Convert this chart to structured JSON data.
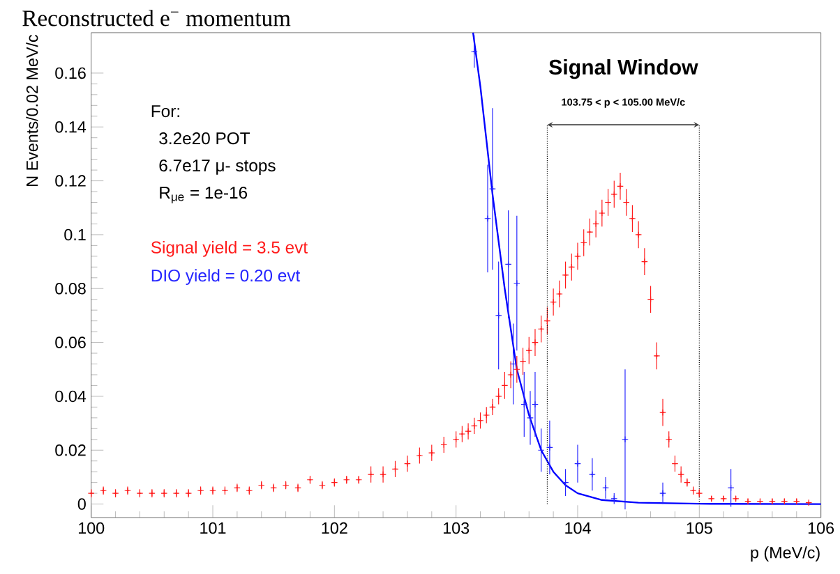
{
  "chart_data": {
    "type": "scatter",
    "title": "Reconstructed e$^{−}$ momentum",
    "xlabel": "p (MeV/c)",
    "ylabel": "N Events/0.02 MeV/c",
    "xlim": [
      100,
      106
    ],
    "ylim": [
      -0.005,
      0.175
    ],
    "xticks": [
      100,
      101,
      102,
      103,
      104,
      105,
      106
    ],
    "yticks": [
      0,
      0.02,
      0.04,
      0.06,
      0.08,
      0.1,
      0.12,
      0.14,
      0.16
    ],
    "marker": "cross",
    "grid": false,
    "annotations": [
      "Signal Window",
      "103.75 < p < 105.00 MeV/c",
      "For:",
      "3.2e20 POT",
      "6.7e17 μ- stops",
      "R$_{μe}$ = 1e-16"
    ],
    "ref_lines": [
      {
        "axis": "x",
        "value": 103.75,
        "color": "#000000",
        "line_style": "dotted"
      },
      {
        "axis": "x",
        "value": 105.0,
        "color": "#000000",
        "line_style": "dotted"
      }
    ],
    "series": [
      {
        "name": "Signal yield = 3.5 evt",
        "color": "#ff1a1a",
        "x": [
          100.0,
          100.1,
          100.2,
          100.3,
          100.4,
          100.5,
          100.6,
          100.7,
          100.8,
          100.9,
          101.0,
          101.1,
          101.2,
          101.3,
          101.4,
          101.5,
          101.6,
          101.7,
          101.8,
          101.9,
          102.0,
          102.1,
          102.2,
          102.3,
          102.4,
          102.5,
          102.6,
          102.7,
          102.8,
          102.9,
          103.0,
          103.05,
          103.1,
          103.15,
          103.2,
          103.25,
          103.3,
          103.35,
          103.4,
          103.45,
          103.5,
          103.55,
          103.6,
          103.65,
          103.7,
          103.75,
          103.8,
          103.85,
          103.9,
          103.95,
          104.0,
          104.05,
          104.1,
          104.15,
          104.2,
          104.25,
          104.3,
          104.35,
          104.4,
          104.45,
          104.5,
          104.55,
          104.6,
          104.65,
          104.7,
          104.75,
          104.8,
          104.85,
          104.9,
          104.95,
          105.0,
          105.1,
          105.2,
          105.3,
          105.4,
          105.5,
          105.6,
          105.7,
          105.8,
          105.9
        ],
        "values": [
          0.004,
          0.005,
          0.004,
          0.005,
          0.004,
          0.004,
          0.004,
          0.004,
          0.004,
          0.005,
          0.005,
          0.005,
          0.006,
          0.005,
          0.007,
          0.006,
          0.007,
          0.006,
          0.009,
          0.007,
          0.008,
          0.009,
          0.009,
          0.011,
          0.011,
          0.013,
          0.015,
          0.018,
          0.019,
          0.022,
          0.024,
          0.026,
          0.027,
          0.029,
          0.031,
          0.033,
          0.036,
          0.04,
          0.044,
          0.048,
          0.05,
          0.053,
          0.057,
          0.06,
          0.065,
          0.068,
          0.075,
          0.078,
          0.085,
          0.088,
          0.092,
          0.097,
          0.101,
          0.104,
          0.108,
          0.112,
          0.115,
          0.118,
          0.112,
          0.106,
          0.1,
          0.09,
          0.076,
          0.055,
          0.034,
          0.024,
          0.015,
          0.011,
          0.008,
          0.005,
          0.004,
          0.002,
          0.002,
          0.002,
          0.001,
          0.001,
          0.001,
          0.001,
          0.001,
          0.0005
        ],
        "errors": [
          0.0015,
          0.0015,
          0.0015,
          0.0015,
          0.0015,
          0.0015,
          0.0015,
          0.0015,
          0.0015,
          0.0015,
          0.0015,
          0.0015,
          0.0015,
          0.0015,
          0.0015,
          0.0015,
          0.0015,
          0.0015,
          0.0015,
          0.0015,
          0.0015,
          0.0015,
          0.0015,
          0.003,
          0.003,
          0.003,
          0.003,
          0.003,
          0.003,
          0.003,
          0.003,
          0.003,
          0.003,
          0.003,
          0.003,
          0.003,
          0.003,
          0.003,
          0.005,
          0.005,
          0.005,
          0.005,
          0.005,
          0.005,
          0.005,
          0.005,
          0.005,
          0.005,
          0.005,
          0.005,
          0.005,
          0.005,
          0.005,
          0.005,
          0.005,
          0.005,
          0.005,
          0.005,
          0.005,
          0.005,
          0.005,
          0.005,
          0.005,
          0.005,
          0.005,
          0.003,
          0.003,
          0.003,
          0.0015,
          0.0015,
          0.0015,
          0.001,
          0.001,
          0.001,
          0.001,
          0.001,
          0.001,
          0.001,
          0.001,
          0.0005
        ],
        "xerrors": [
          0.01,
          0.01,
          0.01,
          0.01,
          0.01,
          0.01,
          0.01,
          0.01,
          0.01,
          0.01,
          0.01,
          0.01,
          0.01,
          0.01,
          0.01,
          0.01,
          0.01,
          0.01,
          0.01,
          0.01,
          0.01,
          0.01,
          0.01,
          0.01,
          0.01,
          0.01,
          0.01,
          0.01,
          0.01,
          0.01,
          0.01,
          0.01,
          0.01,
          0.01,
          0.01,
          0.01,
          0.01,
          0.01,
          0.01,
          0.01,
          0.01,
          0.01,
          0.01,
          0.01,
          0.01,
          0.01,
          0.01,
          0.01,
          0.01,
          0.01,
          0.01,
          0.01,
          0.01,
          0.01,
          0.01,
          0.01,
          0.01,
          0.01,
          0.01,
          0.01,
          0.01,
          0.01,
          0.01,
          0.01,
          0.01,
          0.01,
          0.01,
          0.01,
          0.01,
          0.01,
          0.01,
          0.01,
          0.01,
          0.01,
          0.01,
          0.01,
          0.01,
          0.01,
          0.01,
          0.01
        ]
      },
      {
        "name": "DIO yield = 0.20 evt",
        "color": "#2424ff",
        "x": [
          103.15,
          103.26,
          103.3,
          103.35,
          103.43,
          103.47,
          103.5,
          103.56,
          103.61,
          103.65,
          103.7,
          103.77,
          103.9,
          104.0,
          104.12,
          104.23,
          104.3,
          104.39,
          104.7,
          105.26
        ],
        "values": [
          0.168,
          0.106,
          0.117,
          0.07,
          0.089,
          0.052,
          0.082,
          0.037,
          0.032,
          0.037,
          0.02,
          0.021,
          0.008,
          0.015,
          0.011,
          0.006,
          0.002,
          0.024,
          0.004,
          0.006
        ],
        "errors": [
          0.006,
          0.02,
          0.03,
          0.02,
          0.02,
          0.015,
          0.025,
          0.012,
          0.01,
          0.012,
          0.008,
          0.01,
          0.005,
          0.007,
          0.006,
          0.004,
          0.002,
          0.026,
          0.004,
          0.007
        ],
        "xerrors": [
          0.01,
          0.01,
          0.01,
          0.01,
          0.01,
          0.01,
          0.01,
          0.01,
          0.01,
          0.01,
          0.01,
          0.01,
          0.01,
          0.01,
          0.01,
          0.01,
          0.01,
          0.01,
          0.01,
          0.01
        ]
      },
      {
        "type": "line",
        "color": "#0000ff",
        "marker": "none",
        "x": [
          103.14,
          103.2,
          103.3,
          103.4,
          103.5,
          103.6,
          103.7,
          103.8,
          103.9,
          104.0,
          104.2,
          104.5,
          105.0,
          106.0
        ],
        "values": [
          0.175,
          0.155,
          0.115,
          0.08,
          0.05,
          0.033,
          0.02,
          0.012,
          0.007,
          0.004,
          0.0015,
          0.0005,
          0.0001,
          0.0
        ]
      }
    ]
  }
}
